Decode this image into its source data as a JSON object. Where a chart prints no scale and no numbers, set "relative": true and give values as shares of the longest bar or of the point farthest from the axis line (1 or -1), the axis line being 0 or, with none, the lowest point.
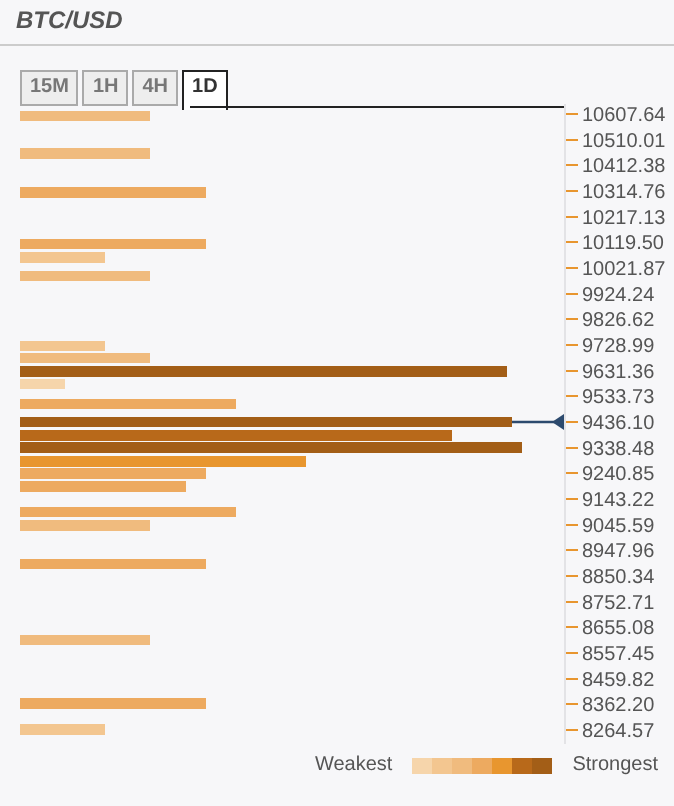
{
  "chart_data": {
    "type": "bar",
    "orientation": "horizontal",
    "relative": true,
    "title": "BTC/USD",
    "annotations": [
      "15M",
      "1H",
      "4H",
      "1D",
      "Weakest",
      "Strongest"
    ],
    "x": [
      10600,
      10458,
      10309,
      10113,
      10062,
      9991,
      9725,
      9680,
      9629,
      9581,
      9505,
      9436,
      9385,
      9339,
      9286,
      9241,
      9190,
      9094,
      9043,
      8896,
      8607,
      8366,
      8267
    ],
    "values": [
      0.26,
      0.26,
      0.37,
      0.37,
      0.17,
      0.26,
      0.17,
      0.26,
      0.97,
      0.09,
      0.43,
      0.98,
      0.86,
      1,
      0.57,
      0.37,
      0.33,
      0.43,
      0.26,
      0.37,
      0.26,
      0.37,
      0.17
    ],
    "colors": [
      "#f0bb7e",
      "#f0bb7e",
      "#edaa60",
      "#edaa60",
      "#f3c690",
      "#f0bb7e",
      "#f3c690",
      "#f0bb7e",
      "#a35e17",
      "#f6d5ab",
      "#edaa60",
      "#a35e17",
      "#b8691a",
      "#a35e17",
      "#e8962f",
      "#edaa60",
      "#edaa60",
      "#edaa60",
      "#f0bb7e",
      "#edaa60",
      "#f0bb7e",
      "#edaa60",
      "#f3c690"
    ],
    "ylim": [
      8211,
      10646
    ],
    "yticks": [
      10607.64,
      10510.01,
      10412.38,
      10314.76,
      10217.13,
      {
        "value": 10119.5,
        "label": "10119.50"
      },
      10021.87,
      9924.24,
      9826.62,
      9728.99,
      9631.36,
      9533.73,
      {
        "value": 9436.1,
        "label": "9436.10"
      },
      9338.48,
      9240.85,
      9143.22,
      9045.59,
      8947.96,
      8850.34,
      8752.71,
      8655.08,
      8557.45,
      8459.82,
      {
        "value": 8362.2,
        "label": "8362.20"
      },
      8264.57
    ],
    "tick_labels": "y",
    "ref_lines": [
      {
        "axis": "y",
        "value": 9436.1,
        "color": "#2c4a6e"
      }
    ]
  }
}
